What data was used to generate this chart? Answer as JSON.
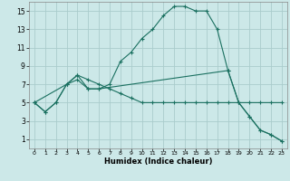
{
  "title": "",
  "xlabel": "Humidex (Indice chaleur)",
  "bg_color": "#cce8e8",
  "grid_color": "#aacccc",
  "line_color": "#1a7060",
  "xlim": [
    -0.5,
    23.5
  ],
  "ylim": [
    0,
    16
  ],
  "yticks": [
    1,
    3,
    5,
    7,
    9,
    11,
    13,
    15
  ],
  "xticks": [
    0,
    1,
    2,
    3,
    4,
    5,
    6,
    7,
    8,
    9,
    10,
    11,
    12,
    13,
    14,
    15,
    16,
    17,
    18,
    19,
    20,
    21,
    22,
    23
  ],
  "line1_x": [
    0,
    1,
    2,
    3,
    4,
    5,
    6,
    7,
    8,
    9,
    10,
    11,
    12,
    13,
    14,
    15,
    16,
    17,
    18,
    19,
    20,
    21,
    22,
    23
  ],
  "line1_y": [
    5,
    4,
    5,
    7,
    8,
    7.5,
    7,
    6.5,
    6,
    5.5,
    5,
    5,
    5,
    5,
    5,
    5,
    5,
    5,
    5,
    5,
    5,
    5,
    5,
    5
  ],
  "line2_x": [
    0,
    1,
    2,
    3,
    4,
    5,
    6,
    7,
    8,
    9,
    10,
    11,
    12,
    13,
    14,
    15,
    16,
    17,
    18,
    19,
    20,
    21,
    22,
    23
  ],
  "line2_y": [
    5,
    4,
    5,
    7,
    7.5,
    6.5,
    6.5,
    7,
    9.5,
    10.5,
    12,
    13,
    14.5,
    15.5,
    15.5,
    15,
    15,
    13,
    8.5,
    5,
    3.5,
    2,
    1.5,
    0.8
  ],
  "line3_x": [
    0,
    3,
    4,
    5,
    6,
    18,
    19,
    20,
    21,
    22,
    23
  ],
  "line3_y": [
    5,
    7,
    8,
    6.5,
    6.5,
    8.5,
    5,
    3.5,
    2,
    1.5,
    0.8
  ]
}
